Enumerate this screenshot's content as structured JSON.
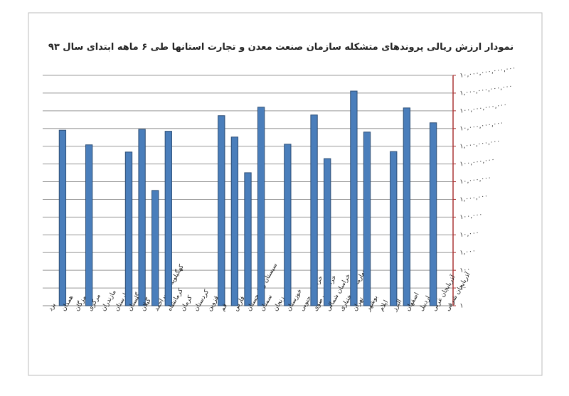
{
  "chart_data": {
    "type": "bar",
    "title": "نمودار ارزش ریالی پروندهای متشکله سازمان صنعت معدن و تجارت استانها طی ۶ ماهه ابتدای سال ۹۳",
    "categories": [
      "یزد",
      "همدان",
      "هرمزگان",
      "مرکزی",
      "مازندران",
      "لرستان",
      "گلستان",
      "گیلان",
      "کهگیلویه و بویراحمد",
      "کرمانشاه",
      "کرمان",
      "کردستان",
      "قزوین",
      "قم",
      "فارس",
      "سیستان و بلوچستان",
      "سمنان",
      "زنجان",
      "خوزستان",
      "خراسان جنوبی",
      "خراسان رضوی",
      "خراسان شمالی",
      "چهارمحال بختیاری",
      "تهران",
      "بوشهر",
      "ایلام",
      "البرز",
      "اصفهان",
      "اردبیل",
      "آذربایجان غربی",
      "آذربایجان شرقی"
    ],
    "values": [
      1,
      8000000000,
      1,
      1200000000,
      1,
      1,
      470000000,
      9000000000,
      3200000,
      7000000000,
      1,
      1,
      1,
      53000000000,
      3300000000,
      32000000,
      160000000000,
      1,
      1300000000,
      1,
      58000000000,
      200000000,
      1,
      1300000000000,
      6300000000,
      1,
      500000000,
      145000000000,
      1,
      21000000000,
      1
    ],
    "color": "#4a7ebb",
    "log_scale": true,
    "ylim": [
      1,
      10000000000000
    ],
    "yticks": [
      {
        "value": 1,
        "label": "۱"
      },
      {
        "value": 10,
        "label": "۱۰"
      },
      {
        "value": 100,
        "label": "۱۰۰"
      },
      {
        "value": 1000,
        "label": "۱,۰۰۰"
      },
      {
        "value": 10000,
        "label": "۱۰,۰۰۰"
      },
      {
        "value": 100000,
        "label": "۱۰۰,۰۰۰"
      },
      {
        "value": 1000000,
        "label": "۱,۰۰۰,۰۰۰"
      },
      {
        "value": 10000000,
        "label": "۱۰,۰۰۰,۰۰۰"
      },
      {
        "value": 100000000,
        "label": "۱۰۰,۰۰۰,۰۰۰"
      },
      {
        "value": 1000000000,
        "label": "۱,۰۰۰,۰۰۰,۰۰۰"
      },
      {
        "value": 10000000000,
        "label": "۱۰,۰۰۰,۰۰۰,۰۰۰"
      },
      {
        "value": 100000000000,
        "label": "۱۰۰,۰۰۰,۰۰۰,۰۰۰"
      },
      {
        "value": 1000000000000,
        "label": "۱,۰۰۰,۰۰۰,۰۰۰,۰۰۰"
      },
      {
        "value": 10000000000000,
        "label": "۱۰,۰۰۰,۰۰۰,۰۰۰,۰۰۰"
      }
    ],
    "grid": true
  }
}
